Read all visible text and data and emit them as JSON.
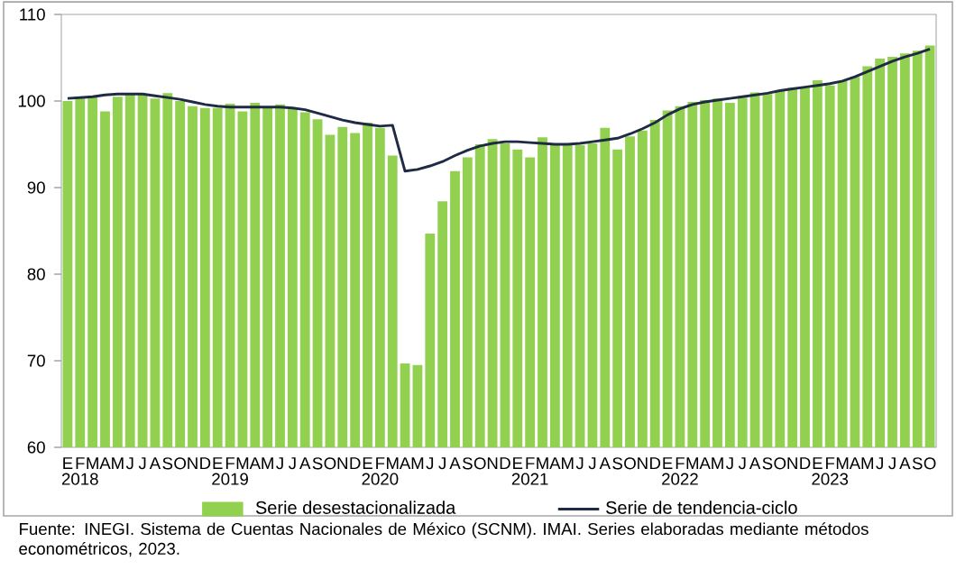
{
  "chart_data": {
    "type": "bar",
    "categories": [
      "E",
      "F",
      "M",
      "A",
      "M",
      "J",
      "J",
      "A",
      "S",
      "O",
      "N",
      "D",
      "E",
      "F",
      "M",
      "A",
      "M",
      "J",
      "J",
      "A",
      "S",
      "O",
      "N",
      "D",
      "E",
      "F",
      "M",
      "A",
      "M",
      "J",
      "J",
      "A",
      "S",
      "O",
      "N",
      "D",
      "E",
      "F",
      "M",
      "A",
      "M",
      "J",
      "J",
      "A",
      "S",
      "O",
      "N",
      "D",
      "E",
      "F",
      "M",
      "A",
      "M",
      "J",
      "J",
      "A",
      "S",
      "O",
      "N",
      "D",
      "E",
      "F",
      "M",
      "A",
      "M",
      "J",
      "J",
      "A",
      "S",
      "O"
    ],
    "series": [
      {
        "name": "Serie desestacionalizada",
        "color": "#92d050",
        "values": [
          100.0,
          100.3,
          100.5,
          98.8,
          100.5,
          100.8,
          100.8,
          100.3,
          100.9,
          100.0,
          99.4,
          99.2,
          99.2,
          99.7,
          98.8,
          99.8,
          99.2,
          99.6,
          99.2,
          98.7,
          97.9,
          96.1,
          97.0,
          96.3,
          97.5,
          96.9,
          93.7,
          69.7,
          69.5,
          84.7,
          88.4,
          91.9,
          93.5,
          95.0,
          95.6,
          95.1,
          94.4,
          93.5,
          95.8,
          94.9,
          94.9,
          94.9,
          95.1,
          96.9,
          94.4,
          95.9,
          96.6,
          97.8,
          98.9,
          99.4,
          99.9,
          100.1,
          100.3,
          99.8,
          100.4,
          101.0,
          100.8,
          101.2,
          101.5,
          101.5,
          102.4,
          101.8,
          102.3,
          102.8,
          104.0,
          104.9,
          105.1,
          105.5,
          105.8,
          106.4
        ]
      },
      {
        "name": "Serie de tendencia-ciclo",
        "type": "line",
        "color": "#1f2a44",
        "values": [
          100.3,
          100.4,
          100.5,
          100.7,
          100.8,
          100.8,
          100.8,
          100.6,
          100.4,
          100.2,
          99.9,
          99.6,
          99.4,
          99.3,
          99.3,
          99.3,
          99.3,
          99.3,
          99.2,
          99.0,
          98.6,
          98.2,
          97.8,
          97.5,
          97.3,
          97.1,
          97.2,
          91.9,
          92.1,
          92.5,
          93.0,
          93.7,
          94.3,
          94.8,
          95.1,
          95.3,
          95.3,
          95.2,
          95.1,
          95.0,
          95.0,
          95.1,
          95.3,
          95.5,
          95.7,
          96.2,
          96.8,
          97.5,
          98.4,
          99.1,
          99.6,
          99.9,
          100.1,
          100.3,
          100.5,
          100.7,
          100.9,
          101.2,
          101.4,
          101.6,
          101.8,
          102.0,
          102.3,
          102.8,
          103.4,
          104.0,
          104.6,
          105.1,
          105.5,
          106.0
        ]
      }
    ],
    "ylim": [
      60,
      110
    ],
    "yticks": [
      60,
      70,
      80,
      90,
      100,
      110
    ],
    "legend": "bottom",
    "annotations": [
      "2018",
      "2019",
      "2020",
      "2021",
      "2022",
      "2023",
      "Fuente: INEGI. Sistema de Cuentas Nacionales de México (SCNM). IMAI. Series elaboradas mediante métodos econométricos, 2023."
    ]
  }
}
